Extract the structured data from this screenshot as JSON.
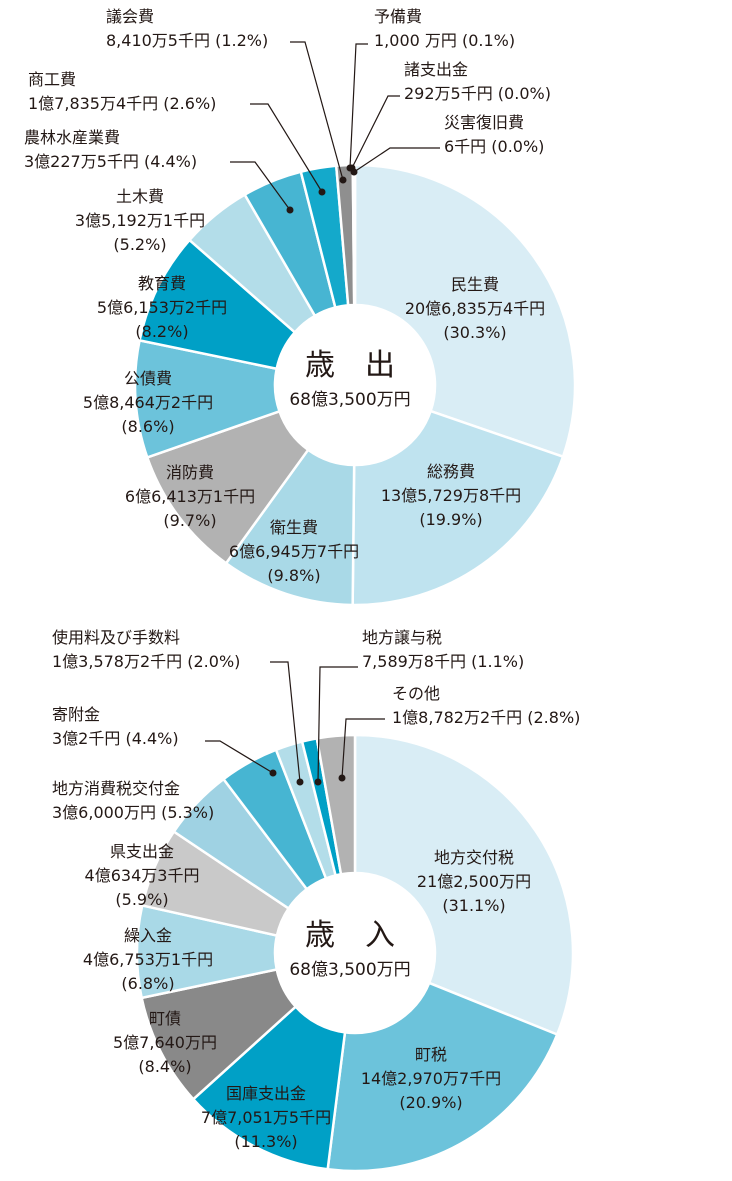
{
  "chart_data": [
    {
      "type": "pie",
      "title": "歳　出",
      "total": "68億3,500万円",
      "slices": [
        {
          "name": "民生費",
          "amount": "20億6,835万4千円",
          "pct_label": "(30.3%)",
          "value": 30.3,
          "color": "#d9edf5"
        },
        {
          "name": "総務費",
          "amount": "13億5,729万8千円",
          "pct_label": "(19.9%)",
          "value": 19.9,
          "color": "#bfe3ef"
        },
        {
          "name": "衛生費",
          "amount": "6億6,945万7千円",
          "pct_label": "(9.8%)",
          "value": 9.8,
          "color": "#a9d9e7"
        },
        {
          "name": "消防費",
          "amount": "6億6,413万1千円",
          "pct_label": "(9.7%)",
          "value": 9.7,
          "color": "#b2b2b2"
        },
        {
          "name": "公債費",
          "amount": "5億8,464万2千円",
          "pct_label": "(8.6%)",
          "value": 8.6,
          "color": "#6cc3db"
        },
        {
          "name": "教育費",
          "amount": "5億6,153万2千円",
          "pct_label": "(8.2%)",
          "value": 8.2,
          "color": "#00a0c6"
        },
        {
          "name": "土木費",
          "amount": "3億5,192万1千円",
          "pct_label": "(5.2%)",
          "value": 5.2,
          "color": "#b3dde9"
        },
        {
          "name": "農林水産業費",
          "amount": "3億227万5千円",
          "pct_label": "(4.4%)",
          "value": 4.4,
          "color": "#47b5d2"
        },
        {
          "name": "商工費",
          "amount": "1億7,835万4千円",
          "pct_label": "(2.6%)",
          "value": 2.6,
          "color": "#14a9cb"
        },
        {
          "name": "議会費",
          "amount": "8,410万5千円",
          "pct_label": "(1.2%)",
          "value": 1.2,
          "color": "#8f8f8f"
        },
        {
          "name": "予備費",
          "amount": "1,000 万円",
          "pct_label": "(0.1%)",
          "value": 0.1,
          "color": "#6cc3db"
        },
        {
          "name": "諸支出金",
          "amount": "292万5千円",
          "pct_label": "(0.0%)",
          "value": 0.04,
          "color": "#9fd2e3"
        },
        {
          "name": "災害復旧費",
          "amount": "6千円",
          "pct_label": "(0.0%)",
          "value": 0.02,
          "color": "#bfe3ef"
        }
      ]
    },
    {
      "type": "pie",
      "title": "歳　入",
      "total": "68億3,500万円",
      "slices": [
        {
          "name": "地方交付税",
          "amount": "21億2,500万円",
          "pct_label": "(31.1%)",
          "value": 31.1,
          "color": "#d9edf5"
        },
        {
          "name": "町税",
          "amount": "14億2,970万7千円",
          "pct_label": "(20.9%)",
          "value": 20.9,
          "color": "#6cc3db"
        },
        {
          "name": "国庫支出金",
          "amount": "7億7,051万5千円",
          "pct_label": "(11.3%)",
          "value": 11.3,
          "color": "#00a0c6"
        },
        {
          "name": "町債",
          "amount": "5億7,640万円",
          "pct_label": "(8.4%)",
          "value": 8.4,
          "color": "#898989"
        },
        {
          "name": "繰入金",
          "amount": "4億6,753万1千円",
          "pct_label": "(6.8%)",
          "value": 6.8,
          "color": "#a9d9e7"
        },
        {
          "name": "県支出金",
          "amount": "4億634万3千円",
          "pct_label": "(5.9%)",
          "value": 5.9,
          "color": "#c9c9c9"
        },
        {
          "name": "地方消費税交付金",
          "amount": "3億6,000万円",
          "pct_label": "(5.3%)",
          "value": 5.3,
          "color": "#9fd2e3"
        },
        {
          "name": "寄附金",
          "amount": "3億2千円",
          "pct_label": "(4.4%)",
          "value": 4.4,
          "color": "#47b5d2"
        },
        {
          "name": "使用料及び手数料",
          "amount": "1億3,578万2千円",
          "pct_label": "(2.0%)",
          "value": 2.0,
          "color": "#b3dde9"
        },
        {
          "name": "地方譲与税",
          "amount": "7,589万8千円",
          "pct_label": "(1.1%)",
          "value": 1.1,
          "color": "#00a0c6"
        },
        {
          "name": "その他",
          "amount": "1億8,782万2千円",
          "pct_label": "(2.8%)",
          "value": 2.8,
          "color": "#b2b2b2"
        }
      ]
    }
  ]
}
